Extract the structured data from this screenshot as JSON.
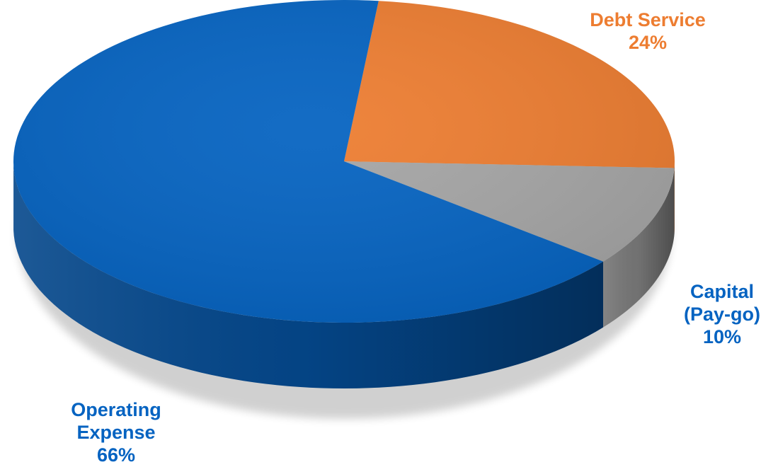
{
  "chart_data": {
    "type": "pie",
    "style": "3d",
    "start_angle_deg": 84,
    "direction": "clockwise",
    "colors_note": "slice colors in order",
    "slices": [
      {
        "label_lines": [
          "Debt Service"
        ],
        "value": 24,
        "value_label": "24%",
        "color": "#ED7D31",
        "label_color": "#ED7D31"
      },
      {
        "label_lines": [
          "Capital",
          "(Pay-go)"
        ],
        "value": 10,
        "value_label": "10%",
        "color": "#A5A5A5",
        "label_color": "#0563C1"
      },
      {
        "label_lines": [
          "Operating",
          "Expense"
        ],
        "value": 66,
        "value_label": "66%",
        "color": "#0563C1",
        "label_color": "#0563C1"
      }
    ]
  }
}
